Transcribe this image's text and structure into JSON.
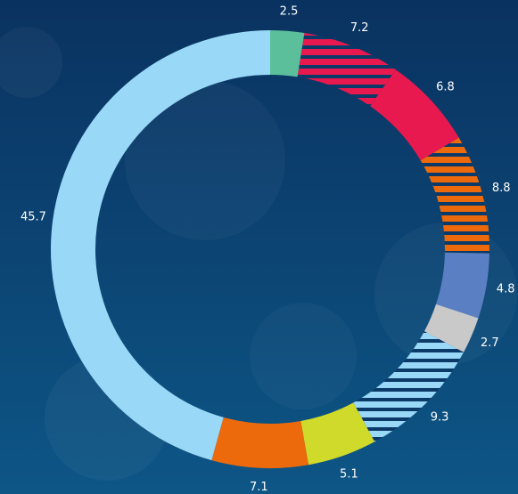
{
  "chart_data": {
    "type": "donut",
    "values": [
      2.5,
      7.2,
      6.8,
      8.8,
      4.8,
      2.7,
      9.3,
      5.1,
      7.1,
      45.7
    ],
    "colors": [
      "#5bbf9c",
      "#e8194f",
      "#e8194f",
      "#ec6a0c",
      "#5a7fc2",
      "#c9c9c9",
      "#9ad8f7",
      "#cfda2a",
      "#ec6a0c",
      "#9ad8f7"
    ],
    "hatched": [
      false,
      true,
      false,
      true,
      false,
      false,
      true,
      false,
      false,
      false
    ]
  }
}
